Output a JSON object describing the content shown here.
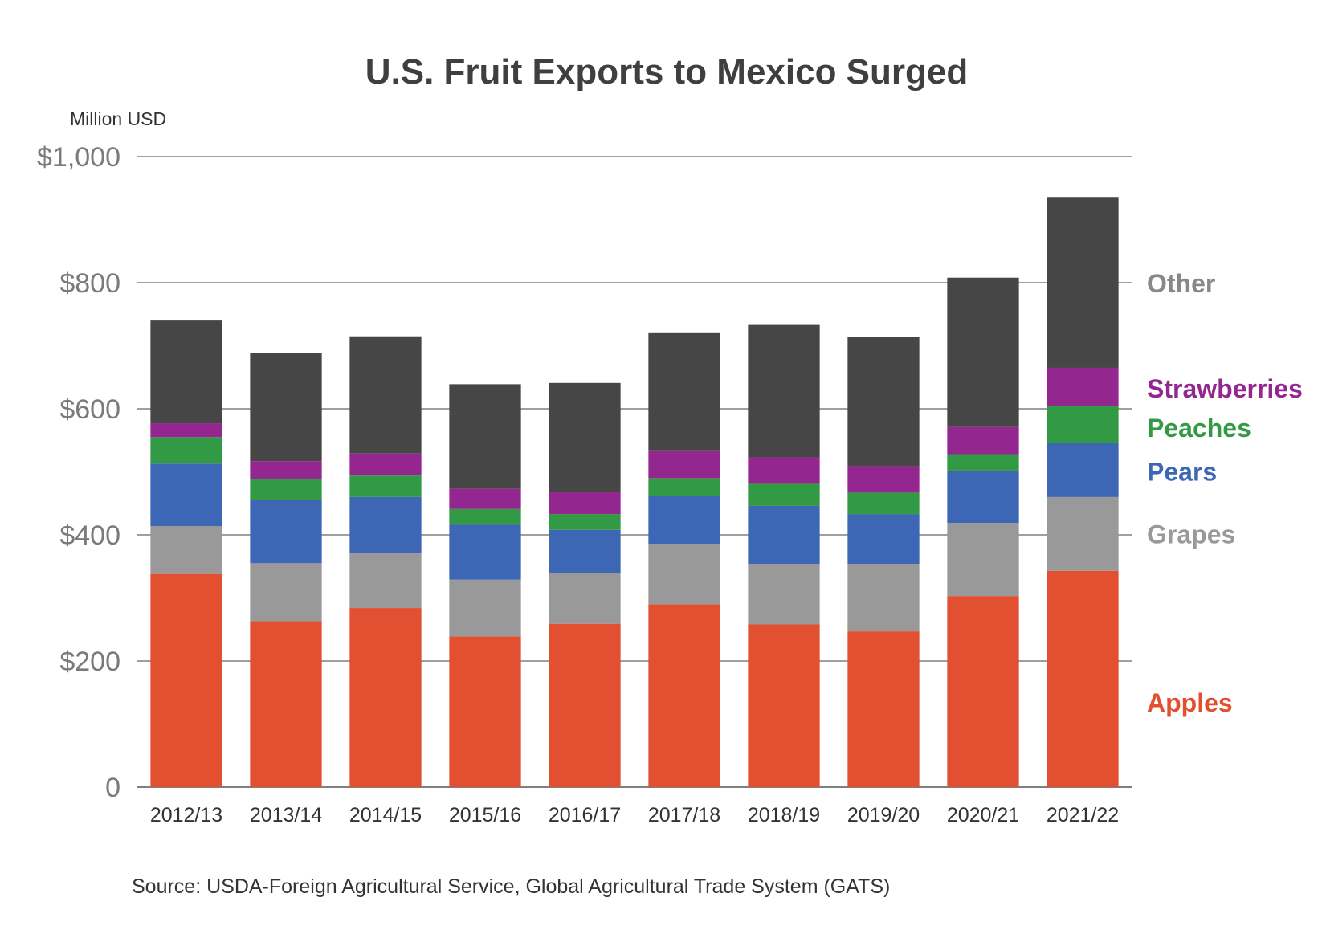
{
  "chart_data": {
    "type": "bar",
    "stacked": true,
    "title": "U.S. Fruit Exports to Mexico Surged",
    "ylabel": "Million USD",
    "xlabel": "",
    "ylim": [
      0,
      1000
    ],
    "yticks": [
      {
        "value": 0,
        "label": "0"
      },
      {
        "value": 200,
        "label": "$200"
      },
      {
        "value": 400,
        "label": "$400"
      },
      {
        "value": 600,
        "label": "$600"
      },
      {
        "value": 800,
        "label": "$800"
      },
      {
        "value": 1000,
        "label": "$1,000"
      }
    ],
    "categories": [
      "2012/13",
      "2013/14",
      "2014/15",
      "2015/16",
      "2016/17",
      "2017/18",
      "2018/19",
      "2019/20",
      "2020/21",
      "2021/22"
    ],
    "series": [
      {
        "name": "Apples",
        "color": "#e24f31",
        "label_color": "#e24f31",
        "values": [
          338,
          263,
          284,
          239,
          259,
          290,
          258,
          247,
          303,
          343
        ]
      },
      {
        "name": "Grapes",
        "color": "#999999",
        "label_color": "#999999",
        "values": [
          76,
          92,
          88,
          90,
          80,
          96,
          96,
          107,
          116,
          117
        ]
      },
      {
        "name": "Pears",
        "color": "#3d66b4",
        "label_color": "#3d66b4",
        "values": [
          99,
          100,
          88,
          87,
          69,
          76,
          92,
          79,
          83,
          86
        ]
      },
      {
        "name": "Peaches",
        "color": "#329944",
        "label_color": "#329944",
        "values": [
          42,
          34,
          34,
          25,
          25,
          28,
          35,
          34,
          26,
          58
        ]
      },
      {
        "name": "Strawberries",
        "color": "#93278f",
        "label_color": "#93278f",
        "values": [
          22,
          28,
          35,
          32,
          35,
          44,
          42,
          42,
          43,
          61
        ]
      },
      {
        "name": "Other",
        "color": "#464646",
        "label_color": "#888888",
        "values": [
          163,
          172,
          186,
          166,
          173,
          186,
          210,
          205,
          237,
          271
        ]
      }
    ],
    "legend_labels": [
      {
        "name": "Other",
        "anchor_value": 800
      },
      {
        "name": "Strawberries",
        "anchor_value": 633
      },
      {
        "name": "Peaches",
        "anchor_value": 571
      },
      {
        "name": "Pears",
        "anchor_value": 501
      },
      {
        "name": "Grapes",
        "anchor_value": 402
      },
      {
        "name": "Apples",
        "anchor_value": 135
      }
    ],
    "legend_position": "right",
    "grid": true,
    "source": "Source: USDA-Foreign Agricultural Service, Global Agricultural Trade System (GATS)"
  }
}
